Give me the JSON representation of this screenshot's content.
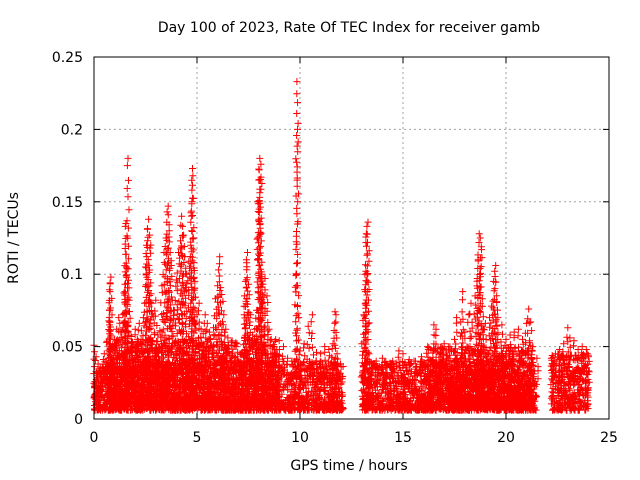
{
  "chart_data": {
    "type": "scatter",
    "title": "Day 100 of 2023, Rate Of TEC Index for receiver gamb",
    "xlabel": "GPS time / hours",
    "ylabel": "ROTI / TECUs",
    "xlim": [
      0,
      25
    ],
    "ylim": [
      0,
      0.25
    ],
    "xticks": [
      0,
      5,
      10,
      15,
      20,
      25
    ],
    "yticks": [
      0,
      0.05,
      0.1,
      0.15,
      0.2,
      0.25
    ],
    "xtick_labels": [
      "0",
      "5",
      "10",
      "15",
      "20",
      "25"
    ],
    "ytick_labels": [
      "0",
      "0.05",
      "0.1",
      "0.15",
      "0.2",
      "0.25"
    ],
    "grid": true,
    "marker": "+",
    "color": "#ff0000",
    "coverage_gaps_hours": [
      [
        12.1,
        13.0
      ],
      [
        21.5,
        22.2
      ]
    ],
    "points": [
      [
        0.0,
        0.051
      ],
      [
        0.1,
        0.043
      ],
      [
        0.2,
        0.038
      ],
      [
        0.3,
        0.036
      ],
      [
        0.5,
        0.045
      ],
      [
        0.6,
        0.034
      ],
      [
        0.7,
        0.042
      ],
      [
        0.8,
        0.048
      ],
      [
        0.9,
        0.035
      ],
      [
        1.0,
        0.034
      ],
      [
        0.75,
        0.065
      ],
      [
        0.75,
        0.075
      ],
      [
        0.78,
        0.088
      ],
      [
        0.78,
        0.094
      ],
      [
        0.82,
        0.098
      ],
      [
        1.0,
        0.055
      ],
      [
        1.1,
        0.062
      ],
      [
        1.2,
        0.07
      ],
      [
        1.3,
        0.06
      ],
      [
        1.4,
        0.072
      ],
      [
        1.45,
        0.087
      ],
      [
        1.5,
        0.088
      ],
      [
        1.52,
        0.133
      ],
      [
        1.55,
        0.135
      ],
      [
        1.58,
        0.105
      ],
      [
        1.6,
        0.104
      ],
      [
        1.65,
        0.18
      ],
      [
        1.7,
        0.082
      ],
      [
        1.8,
        0.057
      ],
      [
        1.9,
        0.05
      ],
      [
        2.0,
        0.062
      ],
      [
        2.1,
        0.055
      ],
      [
        2.2,
        0.066
      ],
      [
        2.3,
        0.061
      ],
      [
        2.4,
        0.07
      ],
      [
        2.5,
        0.105
      ],
      [
        2.55,
        0.12
      ],
      [
        2.6,
        0.131
      ],
      [
        2.65,
        0.138
      ],
      [
        2.7,
        0.127
      ],
      [
        2.75,
        0.094
      ],
      [
        2.8,
        0.08
      ],
      [
        2.9,
        0.071
      ],
      [
        3.0,
        0.082
      ],
      [
        3.1,
        0.058
      ],
      [
        3.2,
        0.061
      ],
      [
        3.3,
        0.092
      ],
      [
        3.4,
        0.115
      ],
      [
        3.5,
        0.125
      ],
      [
        3.55,
        0.143
      ],
      [
        3.6,
        0.147
      ],
      [
        3.65,
        0.13
      ],
      [
        3.7,
        0.115
      ],
      [
        3.75,
        0.106
      ],
      [
        3.8,
        0.082
      ],
      [
        3.9,
        0.075
      ],
      [
        4.0,
        0.096
      ],
      [
        4.1,
        0.115
      ],
      [
        4.2,
        0.123
      ],
      [
        4.25,
        0.14
      ],
      [
        4.3,
        0.133
      ],
      [
        4.35,
        0.127
      ],
      [
        4.4,
        0.112
      ],
      [
        4.5,
        0.1
      ],
      [
        4.6,
        0.109
      ],
      [
        4.7,
        0.12
      ],
      [
        4.75,
        0.15
      ],
      [
        4.78,
        0.173
      ],
      [
        4.8,
        0.168
      ],
      [
        4.85,
        0.108
      ],
      [
        4.9,
        0.095
      ],
      [
        5.0,
        0.072
      ],
      [
        5.1,
        0.08
      ],
      [
        5.2,
        0.062
      ],
      [
        5.3,
        0.059
      ],
      [
        5.4,
        0.072
      ],
      [
        5.5,
        0.066
      ],
      [
        5.6,
        0.06
      ],
      [
        5.8,
        0.063
      ],
      [
        5.9,
        0.083
      ],
      [
        6.0,
        0.092
      ],
      [
        6.05,
        0.103
      ],
      [
        6.1,
        0.112
      ],
      [
        6.2,
        0.086
      ],
      [
        6.3,
        0.072
      ],
      [
        6.4,
        0.062
      ],
      [
        6.5,
        0.056
      ],
      [
        6.7,
        0.045
      ],
      [
        6.9,
        0.05
      ],
      [
        7.0,
        0.04
      ],
      [
        7.2,
        0.046
      ],
      [
        7.3,
        0.085
      ],
      [
        7.35,
        0.095
      ],
      [
        7.4,
        0.11
      ],
      [
        7.45,
        0.115
      ],
      [
        7.5,
        0.093
      ],
      [
        7.6,
        0.072
      ],
      [
        7.7,
        0.058
      ],
      [
        7.8,
        0.062
      ],
      [
        7.9,
        0.075
      ],
      [
        7.95,
        0.15
      ],
      [
        8.0,
        0.165
      ],
      [
        8.02,
        0.172
      ],
      [
        8.05,
        0.18
      ],
      [
        8.1,
        0.176
      ],
      [
        8.12,
        0.123
      ],
      [
        8.15,
        0.1
      ],
      [
        8.2,
        0.093
      ],
      [
        8.3,
        0.097
      ],
      [
        8.4,
        0.085
      ],
      [
        8.5,
        0.062
      ],
      [
        8.6,
        0.055
      ],
      [
        8.8,
        0.045
      ],
      [
        9.0,
        0.048
      ],
      [
        9.2,
        0.05
      ],
      [
        9.4,
        0.042
      ],
      [
        9.6,
        0.04
      ],
      [
        9.8,
        0.099
      ],
      [
        9.85,
        0.233
      ],
      [
        9.88,
        0.2
      ],
      [
        10.0,
        0.047
      ],
      [
        10.2,
        0.052
      ],
      [
        10.4,
        0.064
      ],
      [
        10.6,
        0.072
      ],
      [
        10.8,
        0.046
      ],
      [
        11.0,
        0.045
      ],
      [
        11.2,
        0.05
      ],
      [
        11.4,
        0.048
      ],
      [
        11.6,
        0.052
      ],
      [
        11.7,
        0.074
      ],
      [
        11.75,
        0.072
      ],
      [
        11.8,
        0.045
      ],
      [
        12.0,
        0.036
      ],
      [
        13.0,
        0.052
      ],
      [
        13.1,
        0.072
      ],
      [
        13.15,
        0.1
      ],
      [
        13.2,
        0.102
      ],
      [
        13.22,
        0.128
      ],
      [
        13.25,
        0.133
      ],
      [
        13.3,
        0.136
      ],
      [
        13.35,
        0.045
      ],
      [
        13.5,
        0.038
      ],
      [
        13.7,
        0.04
      ],
      [
        14.0,
        0.042
      ],
      [
        14.2,
        0.037
      ],
      [
        14.5,
        0.04
      ],
      [
        14.8,
        0.047
      ],
      [
        15.0,
        0.045
      ],
      [
        15.3,
        0.041
      ],
      [
        15.6,
        0.04
      ],
      [
        15.9,
        0.043
      ],
      [
        16.2,
        0.05
      ],
      [
        16.5,
        0.065
      ],
      [
        16.6,
        0.062
      ],
      [
        16.8,
        0.045
      ],
      [
        17.0,
        0.052
      ],
      [
        17.2,
        0.05
      ],
      [
        17.5,
        0.055
      ],
      [
        17.6,
        0.07
      ],
      [
        17.8,
        0.067
      ],
      [
        17.9,
        0.088
      ],
      [
        18.0,
        0.06
      ],
      [
        18.2,
        0.072
      ],
      [
        18.3,
        0.08
      ],
      [
        18.5,
        0.085
      ],
      [
        18.6,
        0.097
      ],
      [
        18.65,
        0.11
      ],
      [
        18.7,
        0.128
      ],
      [
        18.75,
        0.125
      ],
      [
        18.8,
        0.119
      ],
      [
        18.85,
        0.083
      ],
      [
        18.9,
        0.062
      ],
      [
        19.0,
        0.066
      ],
      [
        19.2,
        0.07
      ],
      [
        19.3,
        0.078
      ],
      [
        19.4,
        0.095
      ],
      [
        19.45,
        0.102
      ],
      [
        19.5,
        0.106
      ],
      [
        19.55,
        0.081
      ],
      [
        19.6,
        0.07
      ],
      [
        19.8,
        0.065
      ],
      [
        20.0,
        0.055
      ],
      [
        20.2,
        0.058
      ],
      [
        20.4,
        0.06
      ],
      [
        20.6,
        0.062
      ],
      [
        20.8,
        0.055
      ],
      [
        21.0,
        0.066
      ],
      [
        21.1,
        0.076
      ],
      [
        21.2,
        0.067
      ],
      [
        21.3,
        0.05
      ],
      [
        21.5,
        0.042
      ],
      [
        22.2,
        0.042
      ],
      [
        22.4,
        0.045
      ],
      [
        22.6,
        0.048
      ],
      [
        22.8,
        0.052
      ],
      [
        23.0,
        0.063
      ],
      [
        23.1,
        0.056
      ],
      [
        23.3,
        0.054
      ],
      [
        23.5,
        0.048
      ],
      [
        23.7,
        0.05
      ],
      [
        23.9,
        0.048
      ],
      [
        24.0,
        0.043
      ]
    ],
    "dense_bands": [
      [
        0.0,
        12.1,
        0.006,
        0.04
      ],
      [
        13.0,
        21.5,
        0.006,
        0.04
      ],
      [
        22.2,
        24.0,
        0.006,
        0.045
      ],
      [
        0.6,
        9.0,
        0.01,
        0.055
      ],
      [
        16.2,
        21.3,
        0.01,
        0.05
      ]
    ]
  }
}
